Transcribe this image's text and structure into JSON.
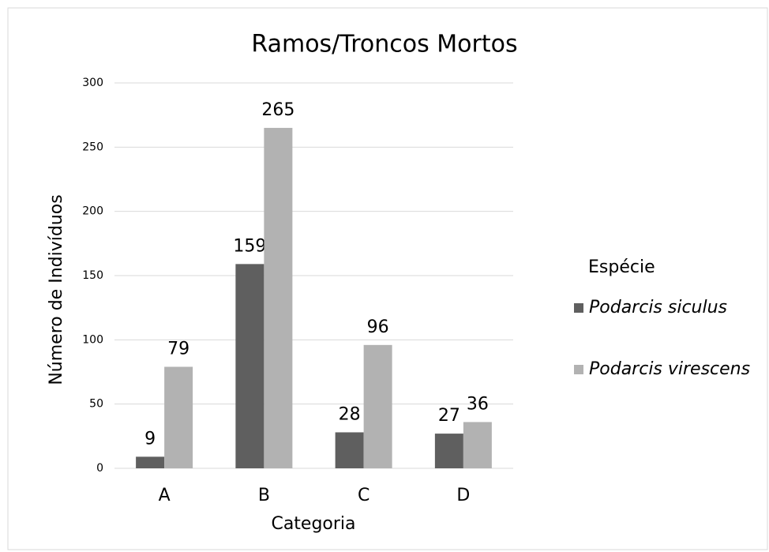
{
  "chart_data": {
    "type": "bar",
    "title": "Ramos/Troncos Mortos",
    "x_label": "Categoria",
    "y_label": "Número de Indivíduos",
    "legend_title": "Espécie",
    "legend_position": "right",
    "categories": [
      "A",
      "B",
      "C",
      "D"
    ],
    "series": [
      {
        "name": "Podarcis siculus",
        "color": "#5f5f5f",
        "values": [
          9,
          159,
          28,
          27
        ]
      },
      {
        "name": "Podarcis virescens",
        "color": "#b2b2b2",
        "values": [
          79,
          265,
          96,
          36
        ]
      }
    ],
    "ylim": [
      0,
      300
    ],
    "yticks": [
      0,
      50,
      100,
      150,
      200,
      250,
      300
    ],
    "grid": true
  }
}
